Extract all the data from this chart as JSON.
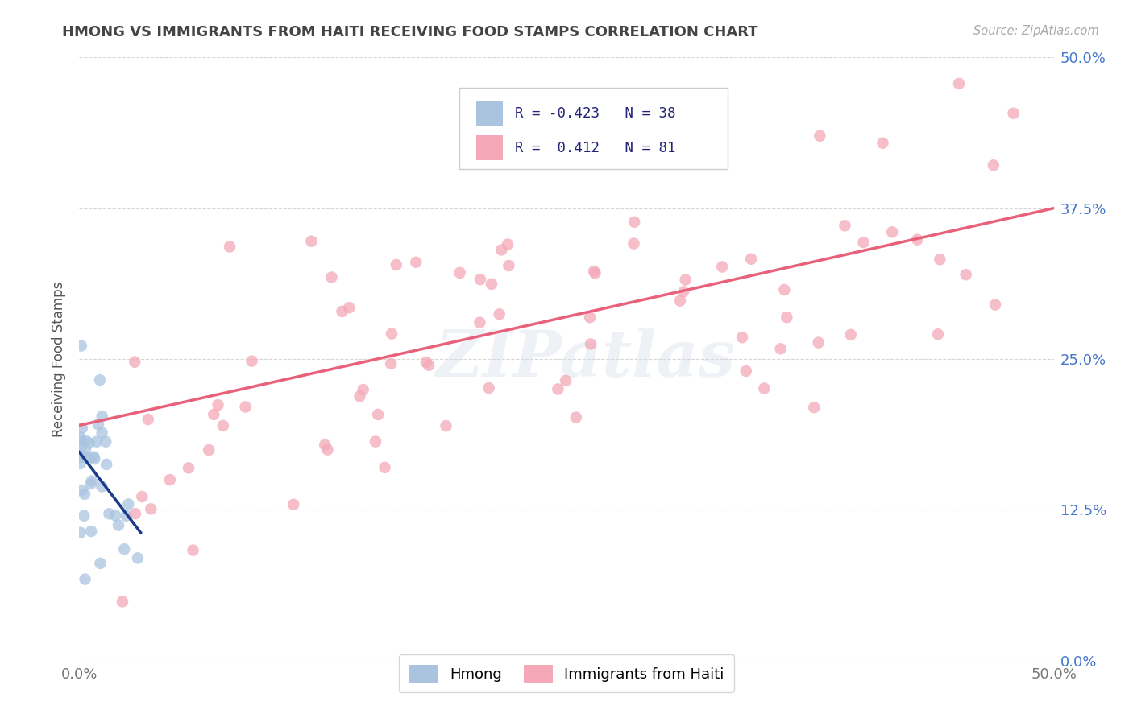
{
  "title": "HMONG VS IMMIGRANTS FROM HAITI RECEIVING FOOD STAMPS CORRELATION CHART",
  "source": "Source: ZipAtlas.com",
  "ylabel": "Receiving Food Stamps",
  "legend_hmong_label": "Hmong",
  "legend_haiti_label": "Immigrants from Haiti",
  "xlim": [
    0.0,
    0.5
  ],
  "ylim": [
    0.0,
    0.5
  ],
  "hmong_R": -0.423,
  "hmong_N": 38,
  "haiti_R": 0.412,
  "haiti_N": 81,
  "hmong_color": "#aac4e0",
  "haiti_color": "#f4a8b8",
  "hmong_line_color": "#1a3a8a",
  "haiti_line_color": "#e8607a",
  "background_color": "#ffffff",
  "grid_color": "#cccccc",
  "title_color": "#444444",
  "axis_label_color": "#555555",
  "tick_color_right": "#4477cc",
  "tick_color_bottom": "#777777",
  "watermark": "ZIPatlas",
  "hmong_seed": 12,
  "haiti_seed": 77,
  "haiti_line_x0": 0.0,
  "haiti_line_x1": 0.5,
  "haiti_line_y0": 0.195,
  "haiti_line_y1": 0.375
}
